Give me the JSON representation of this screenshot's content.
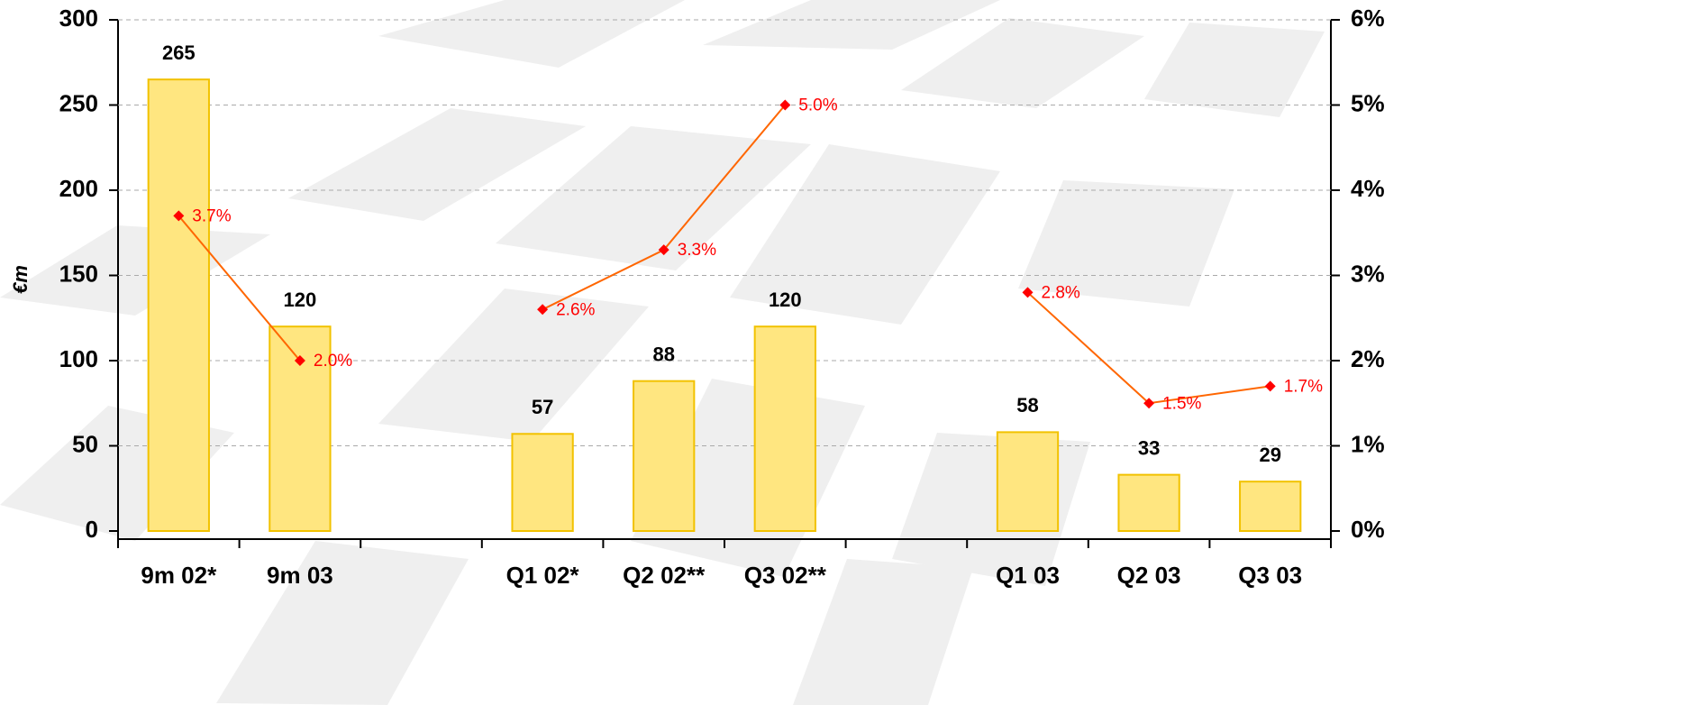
{
  "chart_data": {
    "type": "bar",
    "y_label": "€m",
    "categories": [
      "9m 02*",
      "9m 03",
      null,
      "Q1 02*",
      "Q2 02**",
      "Q3 02**",
      null,
      "Q1 03",
      "Q2 03",
      "Q3 03"
    ],
    "series": [
      {
        "type": "bar",
        "color": "#ffe680",
        "values": [
          265,
          120,
          null,
          57,
          88,
          120,
          null,
          58,
          33,
          29
        ]
      },
      {
        "type": "line",
        "axis": "y2",
        "color": "#ff6600",
        "marker_color": "#ff0000",
        "values": [
          3.7,
          2.0,
          null,
          2.6,
          3.3,
          5.0,
          null,
          2.8,
          1.5,
          1.7
        ],
        "value_labels": [
          "3.7%",
          "2.0%",
          null,
          "2.6%",
          "3.3%",
          "5.0%",
          null,
          "2.8%",
          "1.5%",
          "1.7%"
        ]
      }
    ],
    "ylim": [
      0,
      300
    ],
    "yticks": [
      0,
      50,
      100,
      150,
      200,
      250,
      300
    ],
    "y2lim": [
      0,
      6
    ],
    "y2ticks": [
      {
        "value": 0,
        "label": "0%"
      },
      {
        "value": 1,
        "label": "1%"
      },
      {
        "value": 2,
        "label": "2%"
      },
      {
        "value": 3,
        "label": "3%"
      },
      {
        "value": 4,
        "label": "4%"
      },
      {
        "value": 5,
        "label": "5%"
      },
      {
        "value": 6,
        "label": "6%"
      }
    ],
    "grid": true
  }
}
